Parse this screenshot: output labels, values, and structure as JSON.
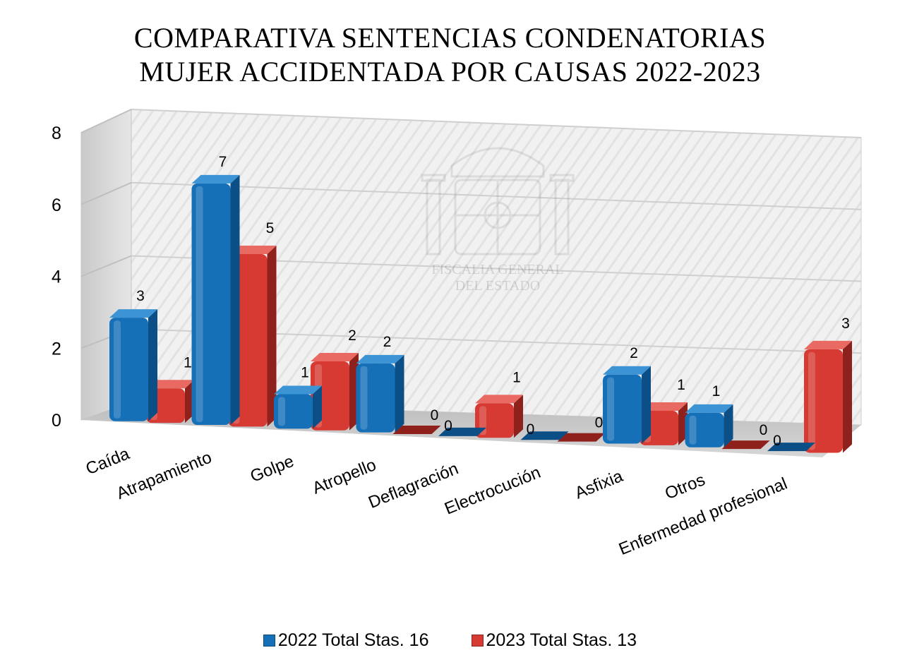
{
  "title": {
    "line1": "COMPARATIVA SENTENCIAS CONDENATORIAS",
    "line2": "MUJER ACCIDENTADA POR CAUSAS 2022-2023"
  },
  "watermark": {
    "line1": "FISCALIA GENERAL",
    "line2": "DEL ESTADO"
  },
  "colors": {
    "series_2022": "#1570b8",
    "series_2022_dark": "#0c4f87",
    "series_2023": "#d63a33",
    "series_2023_dark": "#8f211d"
  },
  "chart_data": {
    "type": "bar",
    "title": "COMPARATIVA SENTENCIAS CONDENATORIAS MUJER ACCIDENTADA POR CAUSAS 2022-2023",
    "categories": [
      "Caída",
      "Atrapamiento",
      "Golpe",
      "Atropello",
      "Deflagración",
      "Electrocución",
      "Asfixia",
      "Otros",
      "Enfermedad profesional"
    ],
    "series": [
      {
        "name": "2022 Total Stas. 16",
        "values": [
          3,
          7,
          1,
          2,
          0,
          0,
          2,
          1,
          0
        ]
      },
      {
        "name": "2023 Total Stas. 13",
        "values": [
          1,
          5,
          2,
          0,
          1,
          0,
          1,
          0,
          3
        ]
      }
    ],
    "yticks": [
      "0",
      "2",
      "4",
      "6",
      "8"
    ],
    "ylim": [
      0,
      8
    ],
    "grid": true,
    "legend_position": "bottom",
    "style": "3d-clustered"
  }
}
